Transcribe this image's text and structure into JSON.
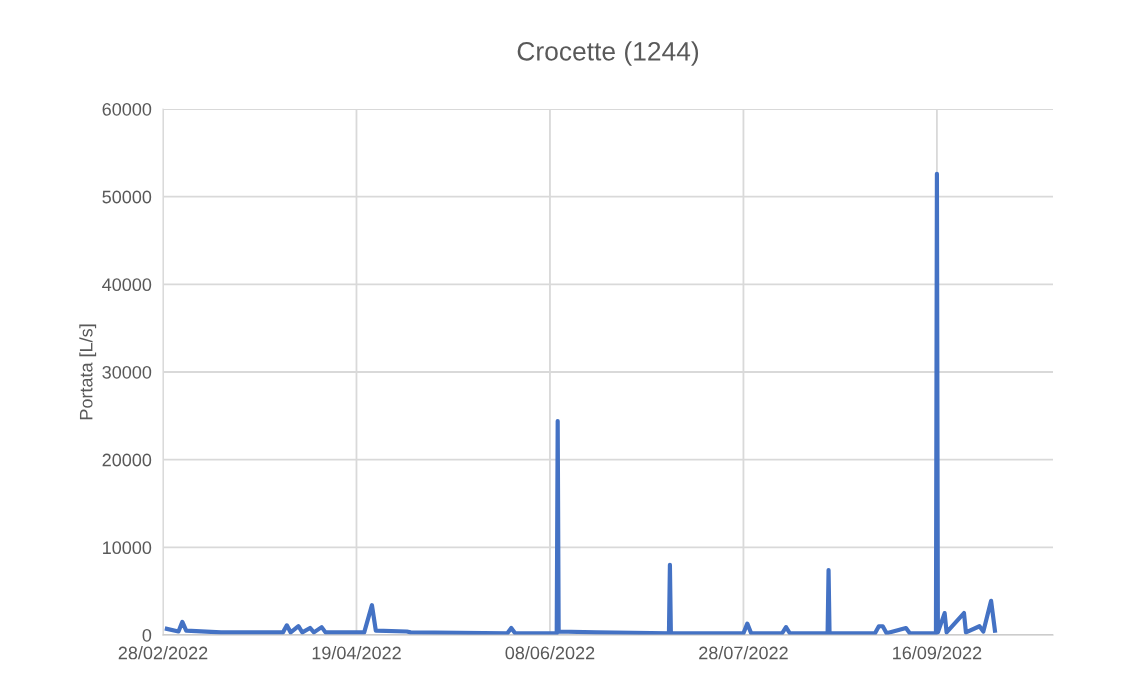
{
  "chart_data": {
    "type": "line",
    "title": "Crocette (1244)",
    "ylabel": "Portata [L/s]",
    "x": [
      "2022-03-01",
      "2022-03-04",
      "2022-03-05",
      "2022-03-06",
      "2022-03-15",
      "2022-03-31",
      "2022-04-01",
      "2022-04-02",
      "2022-04-04",
      "2022-04-05",
      "2022-04-07",
      "2022-04-08",
      "2022-04-10",
      "2022-04-11",
      "2022-04-21",
      "2022-04-23",
      "2022-04-24",
      "2022-05-02",
      "2022-05-03",
      "2022-05-28",
      "2022-05-29",
      "2022-05-30",
      "2022-06-09T18:00",
      "2022-06-10",
      "2022-06-10T06:00",
      "2022-06-20",
      "2022-07-08T18:00",
      "2022-07-09",
      "2022-07-09T06:00",
      "2022-07-28",
      "2022-07-29",
      "2022-07-30",
      "2022-08-07",
      "2022-08-08",
      "2022-08-09",
      "2022-08-18T18:00",
      "2022-08-19",
      "2022-08-19T06:00",
      "2022-08-31",
      "2022-09-01",
      "2022-09-02",
      "2022-09-03",
      "2022-09-08",
      "2022-09-09",
      "2022-09-15T18:00",
      "2022-09-16",
      "2022-09-16T06:00",
      "2022-09-18",
      "2022-09-18T12:00",
      "2022-09-23",
      "2022-09-23T12:00",
      "2022-09-27",
      "2022-09-28",
      "2022-09-30",
      "2022-10-01"
    ],
    "series": [
      {
        "color": "#4472c4",
        "values": [
          700,
          400,
          1500,
          500,
          300,
          300,
          1100,
          300,
          1000,
          300,
          800,
          300,
          900,
          300,
          300,
          3400,
          500,
          400,
          300,
          200,
          800,
          200,
          200,
          24400,
          400,
          300,
          200,
          8000,
          200,
          200,
          1300,
          200,
          200,
          900,
          200,
          200,
          7400,
          200,
          200,
          1000,
          1000,
          200,
          800,
          200,
          200,
          52600,
          300,
          2500,
          300,
          2500,
          300,
          1000,
          400,
          3900,
          500
        ]
      }
    ],
    "xlim": [
      "2022-02-28",
      "2022-10-16"
    ],
    "xticks": [
      {
        "value": "2022-02-28",
        "label": "28/02/2022"
      },
      {
        "value": "2022-04-19",
        "label": "19/04/2022"
      },
      {
        "value": "2022-06-08",
        "label": "08/06/2022"
      },
      {
        "value": "2022-07-28",
        "label": "28/07/2022"
      },
      {
        "value": "2022-09-16",
        "label": "16/09/2022"
      }
    ],
    "ylim": [
      0,
      60000
    ],
    "yticks": [
      0,
      10000,
      20000,
      30000,
      40000,
      50000,
      60000
    ],
    "grid": true,
    "marker": "none",
    "line_style": "solid"
  }
}
